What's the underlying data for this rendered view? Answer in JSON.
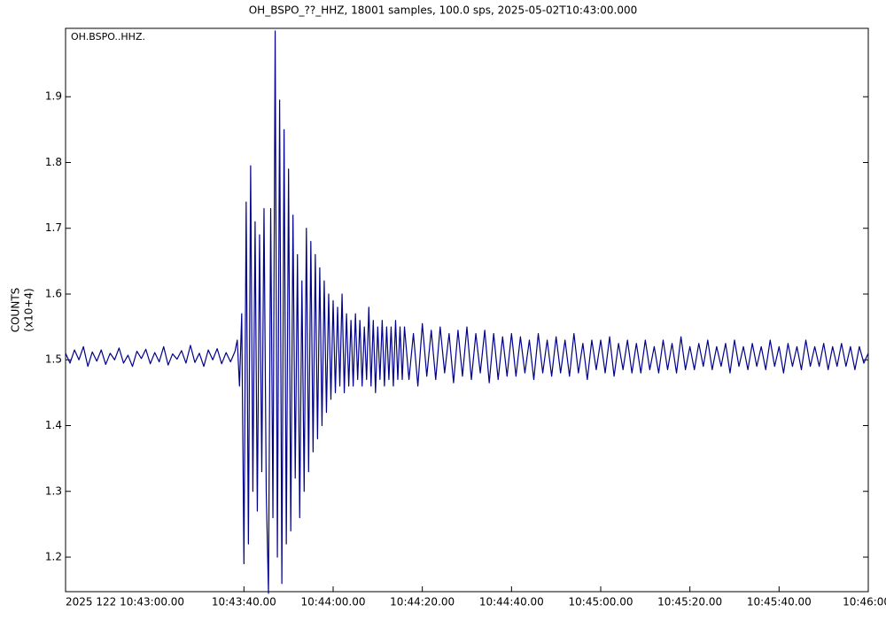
{
  "chart_data": {
    "type": "line",
    "title": "OH_BSPO_??_HHZ, 18001 samples, 100.0 sps, 2025-05-02T10:43:00.000",
    "annotation": "OH.BSPO..HHZ.",
    "ylabel": "COUNTS",
    "yunit": "(x10+4)",
    "color": "#00008b",
    "xlim": [
      0,
      180
    ],
    "xticks": [
      {
        "value": 0,
        "label": "2025 122 10:43:00.00"
      },
      {
        "value": 40,
        "label": "10:43:40.00"
      },
      {
        "value": 60,
        "label": "10:44:00.00"
      },
      {
        "value": 80,
        "label": "10:44:20.00"
      },
      {
        "value": 100,
        "label": "10:44:40.00"
      },
      {
        "value": 120,
        "label": "10:45:00.00"
      },
      {
        "value": 140,
        "label": "10:45:20.00"
      },
      {
        "value": 160,
        "label": "10:45:40.00"
      },
      {
        "value": 180,
        "label": "10:46:00."
      }
    ],
    "ylim": [
      1.1475,
      2.004
    ],
    "yticks": [
      1.2,
      1.3,
      1.4,
      1.5,
      1.6,
      1.7,
      1.8,
      1.9
    ],
    "x": [
      0,
      1,
      2,
      3,
      4,
      5,
      6,
      7,
      8,
      9,
      10,
      11,
      12,
      13,
      14,
      15,
      16,
      17,
      18,
      19,
      20,
      21,
      22,
      23,
      24,
      25,
      26,
      27,
      28,
      29,
      30,
      31,
      32,
      33,
      34,
      35,
      36,
      37,
      38,
      38.5,
      39,
      39.5,
      40,
      40.5,
      41,
      41.5,
      42,
      42.5,
      43,
      43.5,
      44,
      44.5,
      45,
      45.5,
      46,
      46.5,
      47,
      47.5,
      48,
      48.5,
      49,
      49.5,
      50,
      50.5,
      51,
      51.5,
      52,
      52.5,
      53,
      53.5,
      54,
      54.5,
      55,
      55.5,
      56,
      56.5,
      57,
      57.5,
      58,
      58.5,
      59,
      59.5,
      60,
      60.5,
      61,
      61.5,
      62,
      62.5,
      63,
      63.5,
      64,
      64.5,
      65,
      65.5,
      66,
      66.5,
      67,
      67.5,
      68,
      68.5,
      69,
      69.5,
      70,
      70.5,
      71,
      71.5,
      72,
      72.5,
      73,
      73.5,
      74,
      74.5,
      75,
      75.5,
      76,
      77,
      78,
      79,
      80,
      81,
      82,
      83,
      84,
      85,
      86,
      87,
      88,
      89,
      90,
      91,
      92,
      93,
      94,
      95,
      96,
      97,
      98,
      99,
      100,
      101,
      102,
      103,
      104,
      105,
      106,
      107,
      108,
      109,
      110,
      111,
      112,
      113,
      114,
      115,
      116,
      117,
      118,
      119,
      120,
      121,
      122,
      123,
      124,
      125,
      126,
      127,
      128,
      129,
      130,
      131,
      132,
      133,
      134,
      135,
      136,
      137,
      138,
      139,
      140,
      141,
      142,
      143,
      144,
      145,
      146,
      147,
      148,
      149,
      150,
      151,
      152,
      153,
      154,
      155,
      156,
      157,
      158,
      159,
      160,
      161,
      162,
      163,
      164,
      165,
      166,
      167,
      168,
      169,
      170,
      171,
      172,
      173,
      174,
      175,
      176,
      177,
      178,
      179,
      180
    ],
    "values": [
      1.51,
      1.495,
      1.515,
      1.5,
      1.52,
      1.49,
      1.512,
      1.498,
      1.515,
      1.493,
      1.51,
      1.5,
      1.518,
      1.495,
      1.507,
      1.49,
      1.513,
      1.502,
      1.516,
      1.494,
      1.511,
      1.497,
      1.52,
      1.492,
      1.509,
      1.501,
      1.514,
      1.495,
      1.522,
      1.496,
      1.51,
      1.49,
      1.515,
      1.5,
      1.517,
      1.494,
      1.511,
      1.497,
      1.513,
      1.53,
      1.46,
      1.57,
      1.19,
      1.74,
      1.22,
      1.795,
      1.3,
      1.71,
      1.27,
      1.69,
      1.33,
      1.73,
      1.3,
      1.145,
      1.73,
      1.26,
      2.0,
      1.2,
      1.895,
      1.16,
      1.85,
      1.22,
      1.79,
      1.24,
      1.72,
      1.32,
      1.66,
      1.26,
      1.62,
      1.3,
      1.7,
      1.33,
      1.68,
      1.36,
      1.66,
      1.38,
      1.64,
      1.4,
      1.62,
      1.42,
      1.6,
      1.44,
      1.59,
      1.45,
      1.58,
      1.46,
      1.6,
      1.45,
      1.57,
      1.46,
      1.56,
      1.46,
      1.57,
      1.47,
      1.56,
      1.46,
      1.55,
      1.47,
      1.58,
      1.46,
      1.56,
      1.45,
      1.55,
      1.47,
      1.56,
      1.46,
      1.55,
      1.47,
      1.55,
      1.46,
      1.56,
      1.47,
      1.55,
      1.47,
      1.55,
      1.47,
      1.54,
      1.46,
      1.555,
      1.475,
      1.545,
      1.47,
      1.55,
      1.48,
      1.54,
      1.465,
      1.545,
      1.475,
      1.55,
      1.47,
      1.54,
      1.48,
      1.545,
      1.465,
      1.54,
      1.47,
      1.535,
      1.475,
      1.54,
      1.475,
      1.535,
      1.48,
      1.53,
      1.47,
      1.54,
      1.48,
      1.53,
      1.475,
      1.535,
      1.48,
      1.53,
      1.475,
      1.54,
      1.48,
      1.525,
      1.47,
      1.53,
      1.485,
      1.53,
      1.48,
      1.535,
      1.475,
      1.525,
      1.485,
      1.53,
      1.48,
      1.525,
      1.48,
      1.53,
      1.485,
      1.52,
      1.48,
      1.53,
      1.485,
      1.525,
      1.48,
      1.535,
      1.485,
      1.52,
      1.485,
      1.525,
      1.49,
      1.53,
      1.485,
      1.52,
      1.49,
      1.525,
      1.48,
      1.53,
      1.49,
      1.52,
      1.485,
      1.525,
      1.49,
      1.52,
      1.485,
      1.53,
      1.49,
      1.52,
      1.48,
      1.525,
      1.49,
      1.52,
      1.485,
      1.53,
      1.49,
      1.52,
      1.49,
      1.525,
      1.485,
      1.52,
      1.49,
      1.525,
      1.49,
      1.52,
      1.485,
      1.52,
      1.495,
      1.51
    ]
  }
}
